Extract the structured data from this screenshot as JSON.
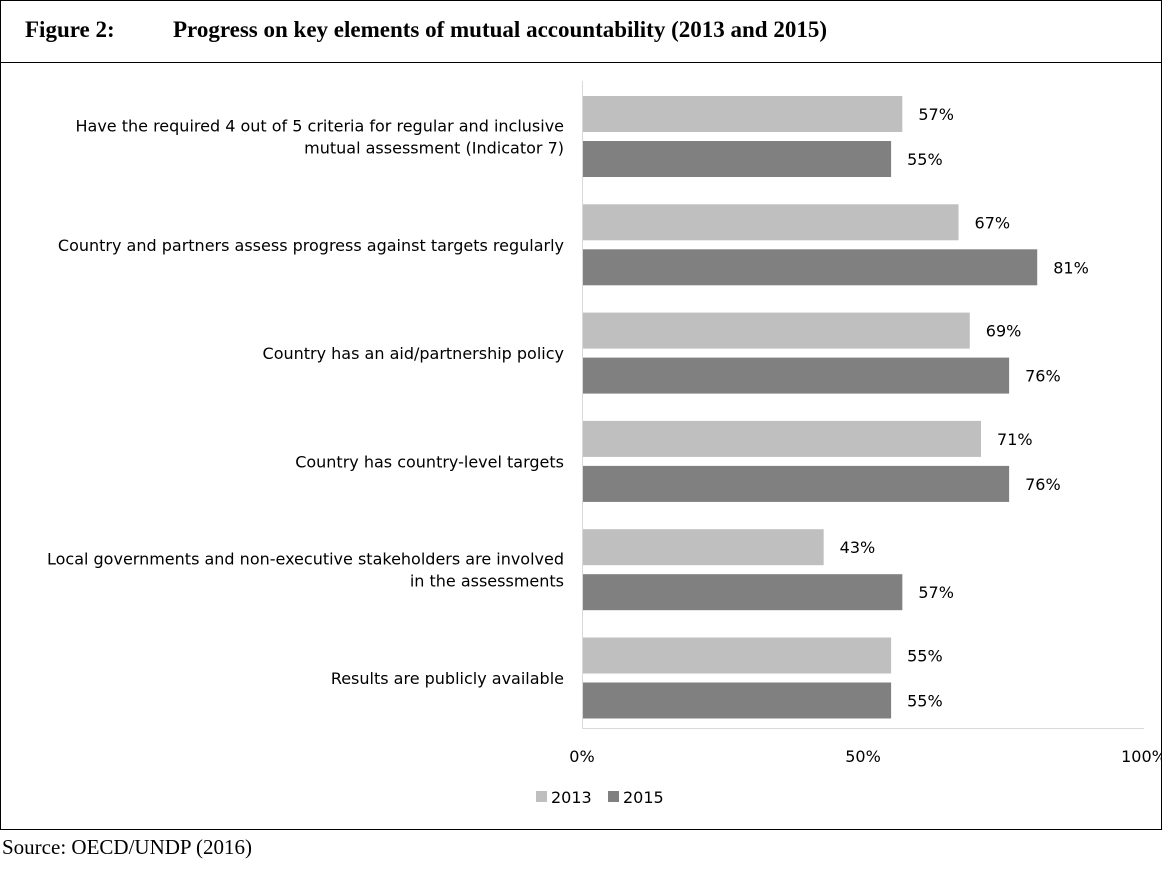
{
  "figure": {
    "number": "Figure 2:",
    "title": "Progress on key elements of mutual accountability (2013 and 2015)"
  },
  "source": "Source: OECD/UNDP (2016)",
  "chart_data": {
    "type": "bar",
    "orientation": "horizontal",
    "categories": [
      [
        "Have the required 4 out of 5 criteria for regular and inclusive",
        "mutual assessment (Indicator 7)"
      ],
      [
        "Country and partners assess progress against targets regularly"
      ],
      [
        "Country has an aid/partnership policy"
      ],
      [
        "Country has country-level targets"
      ],
      [
        "Local governments and non-executive stakeholders are involved",
        "in the assessments"
      ],
      [
        "Results are publicly available"
      ]
    ],
    "series": [
      {
        "name": "2013",
        "color": "#bfbfbf",
        "values": [
          57,
          67,
          69,
          71,
          43,
          55
        ]
      },
      {
        "name": "2015",
        "color": "#808080",
        "values": [
          55,
          81,
          76,
          76,
          57,
          55
        ]
      }
    ],
    "value_suffix": "%",
    "xlim": [
      0,
      100
    ],
    "ticks": [
      {
        "value": 0,
        "label": "0%"
      },
      {
        "value": 50,
        "label": "50%"
      },
      {
        "value": 100,
        "label": "100%"
      }
    ],
    "grid": false,
    "legend": "bottom"
  }
}
